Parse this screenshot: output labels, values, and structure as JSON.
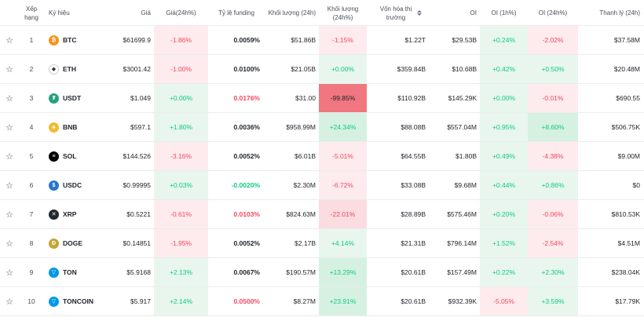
{
  "headers": {
    "rank": "Xếp hạng",
    "symbol": "Ký hiệu",
    "price": "Giá",
    "price_change": "Giá(24h%)",
    "funding": "Tỷ lệ funding",
    "volume": "Khối lượng (24h)",
    "volume_change": "Khối lượng (24h%)",
    "market_cap": "Vốn hóa thị trường",
    "oi": "OI",
    "oi_1h": "OI (1h%)",
    "oi_24h": "OI (24h%)",
    "liquidation": "Thanh lý (24h)"
  },
  "rows": [
    {
      "rank": "1",
      "symbol": "BTC",
      "icon": "bitcoin-icon",
      "icon_color": "#f7931a",
      "price": "$61699.9",
      "price_change": "-1.86%",
      "funding": "0.0059%",
      "volume": "$51.86B",
      "volume_change": "-1.15%",
      "market_cap": "$1.22T",
      "oi": "$29.53B",
      "oi_1h": "+0.24%",
      "oi_24h": "-2.02%",
      "liquidation": "$37.58M"
    },
    {
      "rank": "2",
      "symbol": "ETH",
      "icon": "ethereum-icon",
      "icon_color": "#ffffff",
      "price": "$3001.42",
      "price_change": "-1.00%",
      "funding": "0.0100%",
      "volume": "$21.05B",
      "volume_change": "+0.00%",
      "market_cap": "$359.84B",
      "oi": "$10.68B",
      "oi_1h": "+0.42%",
      "oi_24h": "+0.50%",
      "liquidation": "$20.48M"
    },
    {
      "rank": "3",
      "symbol": "USDT",
      "icon": "tether-icon",
      "icon_color": "#26a17b",
      "price": "$1.049",
      "price_change": "+0.00%",
      "funding": "0.0176%",
      "volume": "$31.00",
      "volume_change": "-99.85%",
      "market_cap": "$110.92B",
      "oi": "$145.29K",
      "oi_1h": "+0.00%",
      "oi_24h": "-0.01%",
      "liquidation": "$690.55"
    },
    {
      "rank": "4",
      "symbol": "BNB",
      "icon": "bnb-icon",
      "icon_color": "#f3ba2f",
      "price": "$597.1",
      "price_change": "+1.80%",
      "funding": "0.0036%",
      "volume": "$958.99M",
      "volume_change": "+24.34%",
      "market_cap": "$88.08B",
      "oi": "$557.04M",
      "oi_1h": "+0.95%",
      "oi_24h": "+8.60%",
      "liquidation": "$506.75K"
    },
    {
      "rank": "5",
      "symbol": "SOL",
      "icon": "solana-icon",
      "icon_color": "#000000",
      "price": "$144.526",
      "price_change": "-3.16%",
      "funding": "0.0052%",
      "volume": "$6.01B",
      "volume_change": "-5.01%",
      "market_cap": "$64.55B",
      "oi": "$1.80B",
      "oi_1h": "+0.49%",
      "oi_24h": "-4.38%",
      "liquidation": "$9.00M"
    },
    {
      "rank": "6",
      "symbol": "USDC",
      "icon": "usdc-icon",
      "icon_color": "#2775ca",
      "price": "$0.99995",
      "price_change": "+0.03%",
      "funding": "-0.0020%",
      "volume": "$2.30M",
      "volume_change": "-6.72%",
      "market_cap": "$33.08B",
      "oi": "$9.68M",
      "oi_1h": "+0.44%",
      "oi_24h": "+0.86%",
      "liquidation": "$0"
    },
    {
      "rank": "7",
      "symbol": "XRP",
      "icon": "xrp-icon",
      "icon_color": "#23292f",
      "price": "$0.5221",
      "price_change": "-0.61%",
      "funding": "0.0103%",
      "volume": "$824.63M",
      "volume_change": "-22.01%",
      "market_cap": "$28.89B",
      "oi": "$575.46M",
      "oi_1h": "+0.20%",
      "oi_24h": "-0.06%",
      "liquidation": "$810.53K"
    },
    {
      "rank": "8",
      "symbol": "DOGE",
      "icon": "doge-icon",
      "icon_color": "#c2a633",
      "price": "$0.14851",
      "price_change": "-1.95%",
      "funding": "0.0052%",
      "volume": "$2.17B",
      "volume_change": "+4.14%",
      "market_cap": "$21.31B",
      "oi": "$796.14M",
      "oi_1h": "+1.52%",
      "oi_24h": "-2.54%",
      "liquidation": "$4.51M"
    },
    {
      "rank": "9",
      "symbol": "TON",
      "icon": "ton-icon",
      "icon_color": "#0098ea",
      "price": "$5.9168",
      "price_change": "+2.13%",
      "funding": "0.0067%",
      "volume": "$190.57M",
      "volume_change": "+13.29%",
      "market_cap": "$20.61B",
      "oi": "$157.49M",
      "oi_1h": "+0.22%",
      "oi_24h": "+2.30%",
      "liquidation": "$238.04K"
    },
    {
      "rank": "10",
      "symbol": "TONCOIN",
      "icon": "ton-icon",
      "icon_color": "#0098ea",
      "price": "$5.917",
      "price_change": "+2.14%",
      "funding": "0.0500%",
      "volume": "$8.27M",
      "volume_change": "+23.91%",
      "market_cap": "$20.61B",
      "oi": "$932.39K",
      "oi_1h": "-5.05%",
      "oi_24h": "+3.59%",
      "liquidation": "$17.79K"
    }
  ],
  "colors": {
    "green": "#0ecb81",
    "red": "#f6465d"
  }
}
